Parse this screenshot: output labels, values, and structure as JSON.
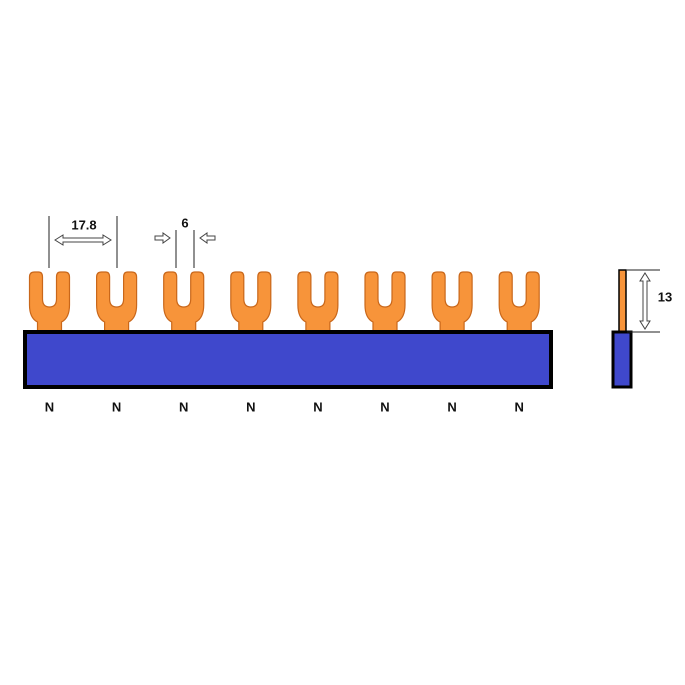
{
  "dimensions": {
    "pitch": 17.8,
    "width": 6,
    "height": 13
  },
  "terminals": [
    {
      "label": "N"
    },
    {
      "label": "N"
    },
    {
      "label": "N"
    },
    {
      "label": "N"
    },
    {
      "label": "N"
    },
    {
      "label": "N"
    },
    {
      "label": "N"
    },
    {
      "label": "N"
    }
  ]
}
